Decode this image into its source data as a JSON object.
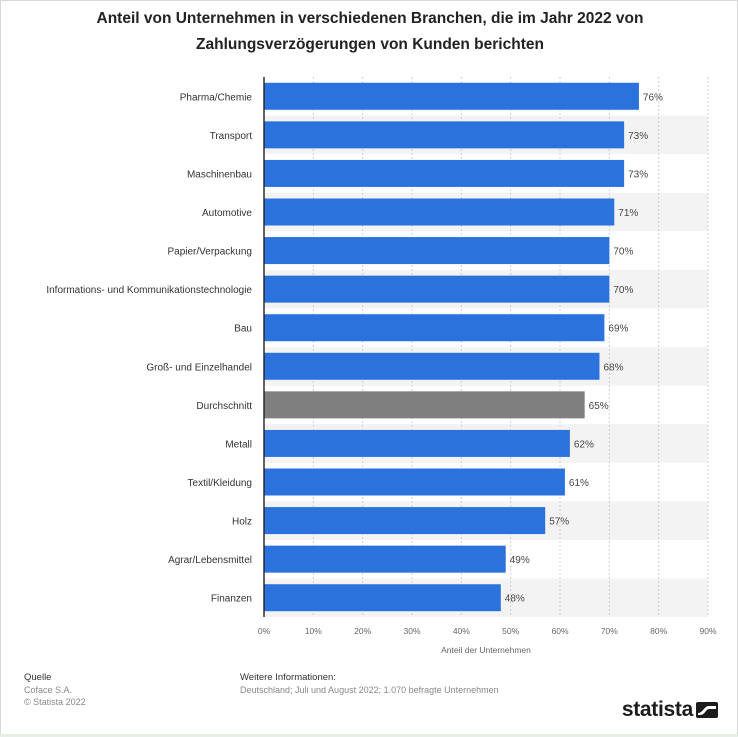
{
  "title": "Anteil von Unternehmen in verschiedenen Branchen, die im Jahr 2022 von Zahlungsverzögerungen von Kunden berichten",
  "colors": {
    "bar": "#2b72dd",
    "highlight": "#7f7f7f",
    "stripe": "#f3f3f3",
    "axis": "#222222"
  },
  "chart_data": {
    "type": "bar",
    "orientation": "horizontal",
    "categories": [
      "Pharma/Chemie",
      "Transport",
      "Maschinenbau",
      "Automotive",
      "Papier/Verpackung",
      "Informations- und Kommunikationstechnologie",
      "Bau",
      "Groß- und Einzelhandel",
      "Durchschnitt",
      "Metall",
      "Textil/Kleidung",
      "Holz",
      "Agrar/Lebensmittel",
      "Finanzen"
    ],
    "values": [
      76,
      73,
      73,
      71,
      70,
      70,
      69,
      68,
      65,
      62,
      61,
      57,
      49,
      48
    ],
    "value_labels": [
      "76%",
      "73%",
      "73%",
      "71%",
      "70%",
      "70%",
      "69%",
      "68%",
      "65%",
      "62%",
      "61%",
      "57%",
      "49%",
      "48%"
    ],
    "highlight_category": "Durchschnitt",
    "xlabel": "Anteil der Unternehmen",
    "xlim": [
      0,
      90
    ],
    "xticks": [
      0,
      10,
      20,
      30,
      40,
      50,
      60,
      70,
      80,
      90
    ],
    "xtick_labels": [
      "0%",
      "10%",
      "20%",
      "30%",
      "40%",
      "50%",
      "60%",
      "70%",
      "80%",
      "90%"
    ],
    "grid": true
  },
  "footer": {
    "source_heading": "Quelle",
    "source_line1": "Coface S.A.",
    "source_line2": "© Statista 2022",
    "info_heading": "Weitere Informationen:",
    "info_text": "Deutschland; Juli und August 2022; 1.070 befragte Unternehmen"
  },
  "logo": {
    "text": "statista",
    "icon": "statista-wave-icon"
  }
}
